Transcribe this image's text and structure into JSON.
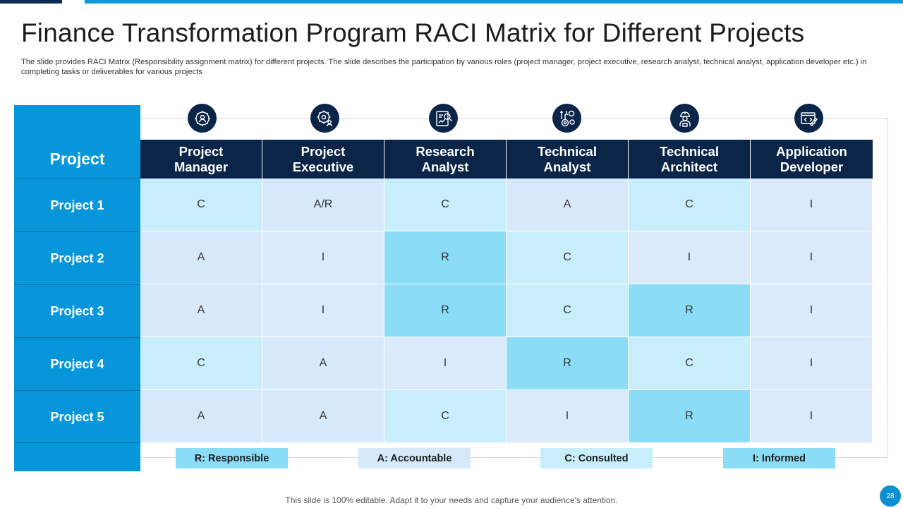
{
  "title": "Finance Transformation Program RACI Matrix for Different Projects",
  "subtitle": "The slide provides RACI Matrix  (Responsibility assignment matrix) for different projects. The slide describes the participation by various roles (project manager, project executive, research analyst, technical analyst, application developer etc.) in completing tasks or deliverables for various projects",
  "colors": {
    "dark_navy": "#0b2549",
    "project_blue": "#0896db",
    "R": "#8adcf7",
    "A": "#d6e9fb",
    "C": "#c8eefb",
    "I": "#dbeafb"
  },
  "matrix": {
    "project_header": "Project",
    "roles": [
      {
        "line1": "Project",
        "line2": "Manager",
        "icon": "gear-person-icon"
      },
      {
        "line1": "Project",
        "line2": "Executive",
        "icon": "gear-people-icon"
      },
      {
        "line1": "Research",
        "line2": "Analyst",
        "icon": "research-report-icon"
      },
      {
        "line1": "Technical",
        "line2": "Analyst",
        "icon": "tools-gears-icon"
      },
      {
        "line1": "Technical",
        "line2": "Architect",
        "icon": "engineer-icon"
      },
      {
        "line1": "Application",
        "line2": "Developer",
        "icon": "code-editor-icon"
      }
    ],
    "rows": [
      {
        "label": "Project 1",
        "values": [
          "C",
          "A/R",
          "C",
          "A",
          "C",
          "I"
        ]
      },
      {
        "label": "Project 2",
        "values": [
          "A",
          "I",
          "R",
          "C",
          "I",
          "I"
        ]
      },
      {
        "label": "Project 3",
        "values": [
          "A",
          "I",
          "R",
          "C",
          "R",
          "I"
        ]
      },
      {
        "label": "Project 4",
        "values": [
          "C",
          "A",
          "I",
          "R",
          "C",
          "I"
        ]
      },
      {
        "label": "Project 5",
        "values": [
          "A",
          "A",
          "C",
          "I",
          "R",
          "I"
        ]
      }
    ]
  },
  "legend": [
    {
      "text": "R: Responsible",
      "color": "#8adcf7"
    },
    {
      "text": "A: Accountable",
      "color": "#d6e9fb"
    },
    {
      "text": "C: Consulted",
      "color": "#c8eefb"
    },
    {
      "text": "I: Informed",
      "color": "#8adcf7"
    }
  ],
  "footer": "This slide is 100% editable. Adapt it to your needs and capture your audience's attention.",
  "page_number": "28"
}
